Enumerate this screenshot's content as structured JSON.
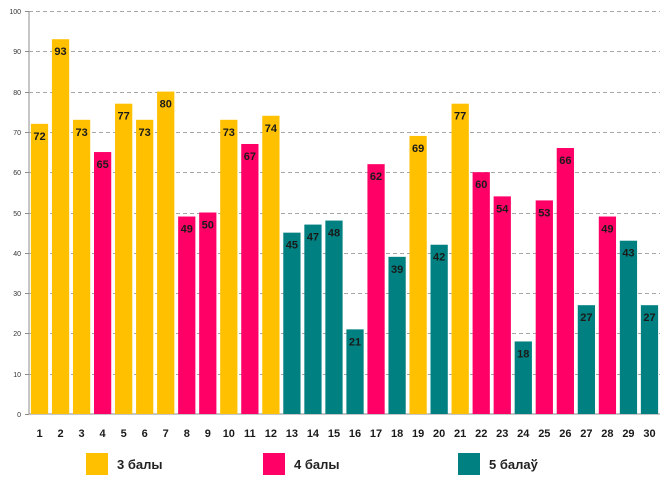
{
  "chart_data": {
    "type": "bar",
    "title": "",
    "xlabel": "",
    "ylabel": "",
    "ylim": [
      0,
      100
    ],
    "yticks": [
      0,
      10,
      20,
      30,
      40,
      50,
      60,
      70,
      80,
      90,
      100
    ],
    "grid": true,
    "legend_position": "bottom",
    "categories": [
      "1",
      "2",
      "3",
      "4",
      "5",
      "6",
      "7",
      "8",
      "9",
      "10",
      "11",
      "12",
      "13",
      "14",
      "15",
      "16",
      "17",
      "18",
      "19",
      "20",
      "21",
      "22",
      "23",
      "24",
      "25",
      "26",
      "27",
      "28",
      "29",
      "30"
    ],
    "values": [
      72,
      93,
      73,
      65,
      77,
      73,
      80,
      49,
      50,
      73,
      67,
      74,
      45,
      47,
      48,
      21,
      62,
      39,
      69,
      42,
      77,
      60,
      54,
      18,
      53,
      66,
      27,
      49,
      43,
      27
    ],
    "groups": [
      3,
      3,
      3,
      4,
      3,
      3,
      3,
      4,
      4,
      3,
      4,
      3,
      5,
      5,
      5,
      5,
      4,
      5,
      3,
      5,
      3,
      4,
      4,
      5,
      4,
      4,
      5,
      4,
      5,
      5
    ],
    "series": [
      {
        "key": 3,
        "name": "3 балы",
        "color": "#FFC000"
      },
      {
        "key": 4,
        "name": "4 балы",
        "color": "#FF0066"
      },
      {
        "key": 5,
        "name": "5 балаў",
        "color": "#008080"
      }
    ]
  }
}
